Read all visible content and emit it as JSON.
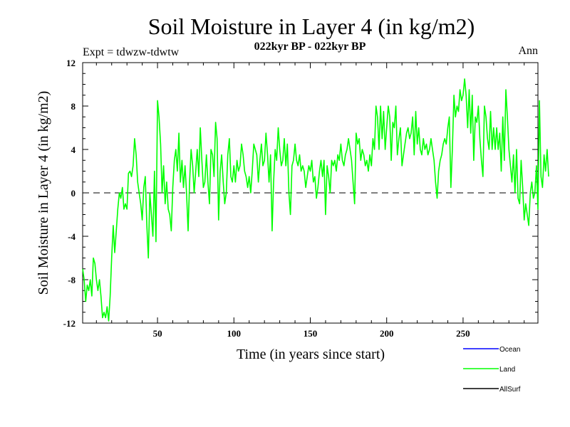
{
  "chart_data": {
    "type": "line",
    "title": "Soil Moisture in Layer 4 (in kg/m2)",
    "subtitle": "022kyr BP - 022kyr BP",
    "experiment_label": "Expt = tdwzw-tdwtw",
    "season_label": "Ann",
    "xlabel": "Time (in years since start)",
    "ylabel": "Soil Moisture in Layer 4 (in kg/m2)",
    "xlim": [
      1,
      299
    ],
    "ylim": [
      -12,
      12
    ],
    "x_ticks": [
      50,
      100,
      150,
      200,
      250
    ],
    "y_ticks": [
      -12,
      -8,
      -4,
      0,
      4,
      8,
      12
    ],
    "zero_line": "dashed",
    "legend": [
      {
        "name": "Ocean",
        "color": "#0000ff"
      },
      {
        "name": "Land",
        "color": "#00ff00"
      },
      {
        "name": "AllSurf",
        "color": "#000000"
      }
    ],
    "series": [
      {
        "name": "Land",
        "color": "#00ff00",
        "x_start": 1,
        "x_step": 1,
        "values": [
          -7.0,
          -8.0,
          -10.0,
          -8.5,
          -9.0,
          -8.0,
          -9.5,
          -6.0,
          -6.5,
          -8.0,
          -9.0,
          -8.0,
          -9.5,
          -11.5,
          -11.0,
          -11.5,
          -10.5,
          -11.8,
          -9.5,
          -6.0,
          -3.0,
          -5.5,
          -3.5,
          -1.5,
          0.0,
          -0.5,
          0.5,
          -1.5,
          -1.0,
          -1.5,
          1.8,
          2.0,
          1.5,
          2.5,
          5.0,
          3.5,
          1.0,
          0.0,
          -1.0,
          -2.5,
          0.5,
          1.5,
          -3.0,
          -6.0,
          0.0,
          -2.0,
          -4.0,
          2.0,
          -4.5,
          8.5,
          7.0,
          4.5,
          0.0,
          2.5,
          -1.0,
          1.0,
          -1.5,
          -2.0,
          -3.5,
          0.5,
          3.0,
          4.0,
          2.0,
          5.5,
          1.0,
          3.0,
          0.5,
          2.5,
          0.0,
          -3.5,
          1.0,
          4.0,
          2.5,
          0.0,
          2.0,
          4.0,
          1.5,
          6.0,
          3.0,
          0.5,
          1.0,
          3.5,
          1.0,
          -1.0,
          4.0,
          3.5,
          1.5,
          6.5,
          5.0,
          -2.5,
          2.0,
          3.5,
          1.0,
          -1.0,
          0.0,
          3.5,
          5.0,
          1.5,
          1.0,
          2.5,
          1.0,
          3.0,
          2.0,
          2.5,
          4.5,
          3.5,
          2.0,
          1.5,
          0.5,
          1.5,
          0.0,
          2.0,
          4.5,
          4.0,
          3.5,
          1.0,
          3.0,
          4.5,
          2.5,
          3.0,
          5.5,
          3.5,
          1.0,
          3.5,
          -3.5,
          1.0,
          4.0,
          3.0,
          6.0,
          4.0,
          2.5,
          3.0,
          5.0,
          2.5,
          4.5,
          0.0,
          -2.0,
          2.5,
          3.0,
          4.5,
          3.0,
          2.5,
          3.5,
          2.0,
          2.5,
          2.0,
          0.5,
          1.5,
          2.5,
          2.0,
          3.0,
          1.0,
          1.5,
          -0.5,
          0.5,
          2.0,
          3.0,
          1.5,
          3.0,
          -2.0,
          2.5,
          1.5,
          0.0,
          3.0,
          2.5,
          3.0,
          2.0,
          3.5,
          3.0,
          4.5,
          3.0,
          2.5,
          3.5,
          4.0,
          5.0,
          4.0,
          3.0,
          1.0,
          -1.0,
          5.5,
          4.5,
          5.0,
          3.0,
          4.0,
          3.5,
          2.5,
          3.0,
          2.0,
          3.5,
          2.5,
          5.0,
          4.0,
          8.0,
          7.0,
          4.0,
          8.0,
          5.0,
          7.5,
          4.0,
          6.0,
          8.0,
          7.0,
          3.0,
          6.5,
          6.0,
          8.0,
          3.5,
          5.0,
          6.0,
          2.5,
          3.5,
          4.5,
          5.5,
          6.0,
          5.0,
          5.5,
          7.0,
          3.5,
          7.5,
          4.5,
          6.0,
          4.0,
          3.5,
          5.0,
          4.0,
          4.5,
          3.5,
          4.0,
          5.0,
          4.0,
          3.0,
          1.0,
          -0.5,
          2.0,
          3.0,
          3.5,
          4.5,
          5.0,
          4.5,
          6.0,
          7.0,
          0.5,
          4.0,
          9.0,
          7.0,
          8.0,
          7.5,
          9.5,
          8.5,
          9.0,
          10.5,
          9.0,
          6.0,
          9.5,
          5.5,
          9.0,
          3.0,
          7.0,
          6.5,
          8.0,
          5.0,
          3.0,
          1.5,
          8.0,
          7.0,
          5.0,
          4.0,
          7.5,
          4.0,
          6.0,
          4.0,
          6.0,
          4.0,
          5.5,
          2.0,
          7.0,
          3.0,
          9.5,
          7.0,
          4.0,
          2.5,
          1.0,
          3.5,
          0.0,
          4.0,
          -0.5,
          -1.0,
          3.0,
          0.5,
          -2.5,
          -1.0,
          -2.0,
          -3.0,
          0.0,
          1.0,
          -0.5,
          0.0,
          2.5,
          -1.5,
          8.5,
          1.5,
          0.5,
          3.5,
          2.0,
          4.0,
          1.5
        ]
      }
    ]
  }
}
